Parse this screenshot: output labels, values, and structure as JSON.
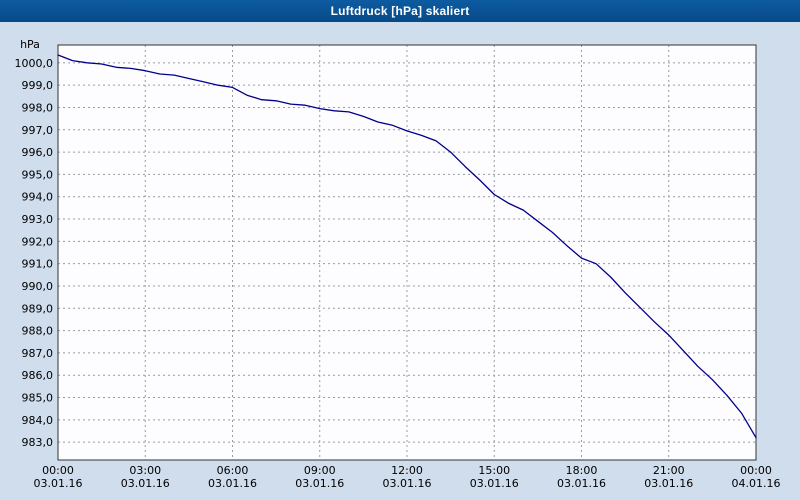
{
  "window": {
    "title": "Luftdruck [hPa] skaliert"
  },
  "colors": {
    "titlebar_bg": "#0a5394",
    "titlebar_text": "#ffffff",
    "page_bg": "#cfdded",
    "plot_bg": "#fdfdff",
    "plot_border": "#333333",
    "grid": "#9a9aa6",
    "line": "#00008c",
    "text": "#000000"
  },
  "chart_data": {
    "type": "line",
    "title": "Luftdruck [hPa] skaliert",
    "unit_label": "hPa",
    "xlabel": "",
    "ylabel": "hPa",
    "ylim": [
      982.2,
      1000.8
    ],
    "xlim_hours": [
      0,
      24
    ],
    "grid": true,
    "legend": "none",
    "y_ticks": [
      {
        "value": 1000,
        "label": "1000,0"
      },
      {
        "value": 999,
        "label": "999,0"
      },
      {
        "value": 998,
        "label": "998,0"
      },
      {
        "value": 997,
        "label": "997,0"
      },
      {
        "value": 996,
        "label": "996,0"
      },
      {
        "value": 995,
        "label": "995,0"
      },
      {
        "value": 994,
        "label": "994,0"
      },
      {
        "value": 993,
        "label": "993,0"
      },
      {
        "value": 992,
        "label": "992,0"
      },
      {
        "value": 991,
        "label": "991,0"
      },
      {
        "value": 990,
        "label": "990,0"
      },
      {
        "value": 989,
        "label": "989,0"
      },
      {
        "value": 988,
        "label": "988,0"
      },
      {
        "value": 987,
        "label": "987,0"
      },
      {
        "value": 986,
        "label": "986,0"
      },
      {
        "value": 985,
        "label": "985,0"
      },
      {
        "value": 984,
        "label": "984,0"
      },
      {
        "value": 983,
        "label": "983,0"
      }
    ],
    "x_ticks": [
      {
        "hour": 0,
        "time": "00:00",
        "date": "03.01.16"
      },
      {
        "hour": 3,
        "time": "03:00",
        "date": "03.01.16"
      },
      {
        "hour": 6,
        "time": "06:00",
        "date": "03.01.16"
      },
      {
        "hour": 9,
        "time": "09:00",
        "date": "03.01.16"
      },
      {
        "hour": 12,
        "time": "12:00",
        "date": "03.01.16"
      },
      {
        "hour": 15,
        "time": "15:00",
        "date": "03.01.16"
      },
      {
        "hour": 18,
        "time": "18:00",
        "date": "03.01.16"
      },
      {
        "hour": 21,
        "time": "21:00",
        "date": "03.01.16"
      },
      {
        "hour": 24,
        "time": "00:00",
        "date": "04.01.16"
      }
    ],
    "series": [
      {
        "name": "Luftdruck",
        "color": "#00008c",
        "points": [
          [
            0.0,
            1000.35
          ],
          [
            0.5,
            1000.1
          ],
          [
            1.0,
            1000.0
          ],
          [
            1.5,
            999.95
          ],
          [
            2.0,
            999.8
          ],
          [
            2.5,
            999.75
          ],
          [
            3.0,
            999.65
          ],
          [
            3.5,
            999.5
          ],
          [
            4.0,
            999.45
          ],
          [
            4.5,
            999.3
          ],
          [
            5.0,
            999.15
          ],
          [
            5.5,
            999.0
          ],
          [
            6.0,
            998.9
          ],
          [
            6.5,
            998.55
          ],
          [
            7.0,
            998.35
          ],
          [
            7.5,
            998.3
          ],
          [
            8.0,
            998.15
          ],
          [
            8.5,
            998.1
          ],
          [
            9.0,
            997.95
          ],
          [
            9.5,
            997.85
          ],
          [
            10.0,
            997.8
          ],
          [
            10.5,
            997.6
          ],
          [
            11.0,
            997.35
          ],
          [
            11.5,
            997.2
          ],
          [
            12.0,
            996.95
          ],
          [
            12.5,
            996.75
          ],
          [
            13.0,
            996.5
          ],
          [
            13.5,
            996.0
          ],
          [
            14.0,
            995.35
          ],
          [
            14.5,
            994.75
          ],
          [
            15.0,
            994.1
          ],
          [
            15.5,
            993.7
          ],
          [
            16.0,
            993.4
          ],
          [
            16.5,
            992.9
          ],
          [
            17.0,
            992.4
          ],
          [
            17.5,
            991.8
          ],
          [
            18.0,
            991.25
          ],
          [
            18.5,
            991.0
          ],
          [
            19.0,
            990.4
          ],
          [
            19.5,
            989.7
          ],
          [
            20.0,
            989.05
          ],
          [
            20.5,
            988.4
          ],
          [
            21.0,
            987.8
          ],
          [
            21.5,
            987.1
          ],
          [
            22.0,
            986.4
          ],
          [
            22.5,
            985.8
          ],
          [
            23.0,
            985.1
          ],
          [
            23.5,
            984.3
          ],
          [
            24.0,
            983.2
          ]
        ]
      }
    ]
  }
}
